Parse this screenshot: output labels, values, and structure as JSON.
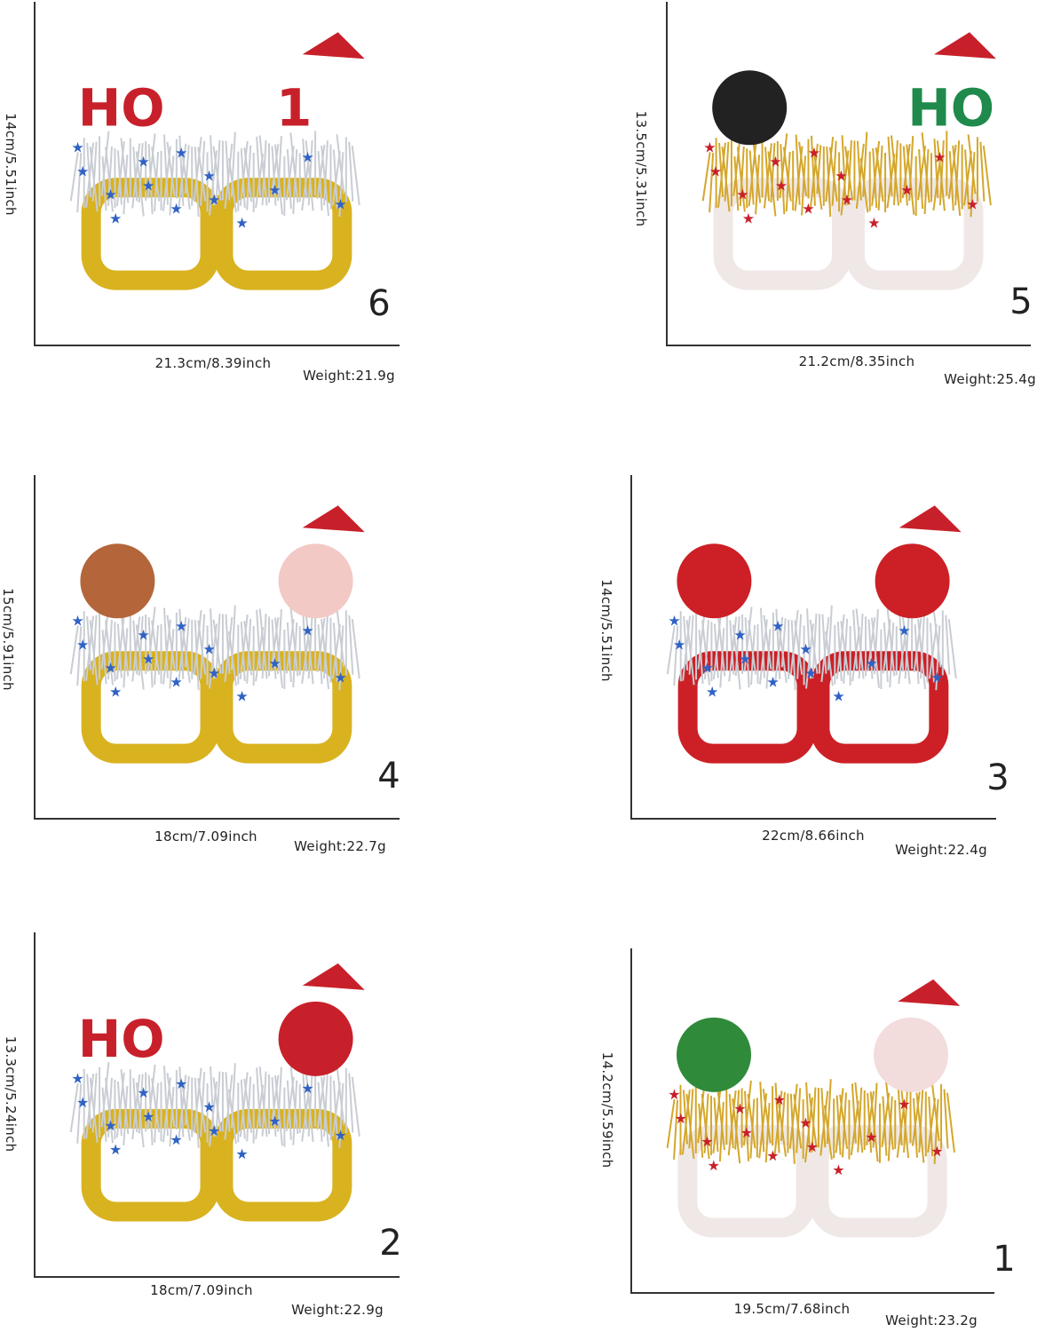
{
  "panels": [
    {
      "number": "6",
      "height": "14cm/5.51inch",
      "width": "21.3cm/8.39inch",
      "weight": "Weight:21.9g",
      "frame_color": "#d9b21f",
      "tinsel_color": "#c9cdd3",
      "decor_left": "HO",
      "decor_right": "1",
      "decor_left_color": "#c8202a",
      "decor_right_color": "#c8202a"
    },
    {
      "number": "5",
      "height": "13.5cm/5.31inch",
      "width": "21.2cm/8.35inch",
      "weight": "Weight:25.4g",
      "frame_color": "#efe8e6",
      "tinsel_color": "#d4a72c",
      "decor_left": "",
      "decor_right": "HO",
      "decor_left_color": "#222222",
      "decor_right_color": "#1f8a4c"
    },
    {
      "number": "4",
      "height": "15cm/5.91inch",
      "width": "18cm/7.09inch",
      "weight": "Weight:22.7g",
      "frame_color": "#d9b21f",
      "tinsel_color": "#c9cdd3",
      "decor_left": "",
      "decor_right": "",
      "decor_left_color": "#b5653a",
      "decor_right_color": "#f2c9c4"
    },
    {
      "number": "3",
      "height": "14cm/5.51inch",
      "width": "22cm/8.66inch",
      "weight": "Weight:22.4g",
      "frame_color": "#cc2026",
      "tinsel_color": "#c9cdd3",
      "decor_left": "",
      "decor_right": "",
      "decor_left_color": "#cc2026",
      "decor_right_color": "#cc2026"
    },
    {
      "number": "2",
      "height": "13.3cm/5.24inch",
      "width": "18cm/7.09inch",
      "weight": "Weight:22.9g",
      "frame_color": "#d9b21f",
      "tinsel_color": "#c9cdd3",
      "decor_left": "HO",
      "decor_right": "",
      "decor_left_color": "#c8202a",
      "decor_right_color": "#c8202a"
    },
    {
      "number": "1",
      "height": "14.2cm/5.59inch",
      "width": "19.5cm/7.68inch",
      "weight": "Weight:23.2g",
      "frame_color": "#efe8e6",
      "tinsel_color": "#d4a72c",
      "decor_left": "",
      "decor_right": "",
      "decor_left_color": "#2f8a3a",
      "decor_right_color": "#f2dcdc"
    }
  ]
}
